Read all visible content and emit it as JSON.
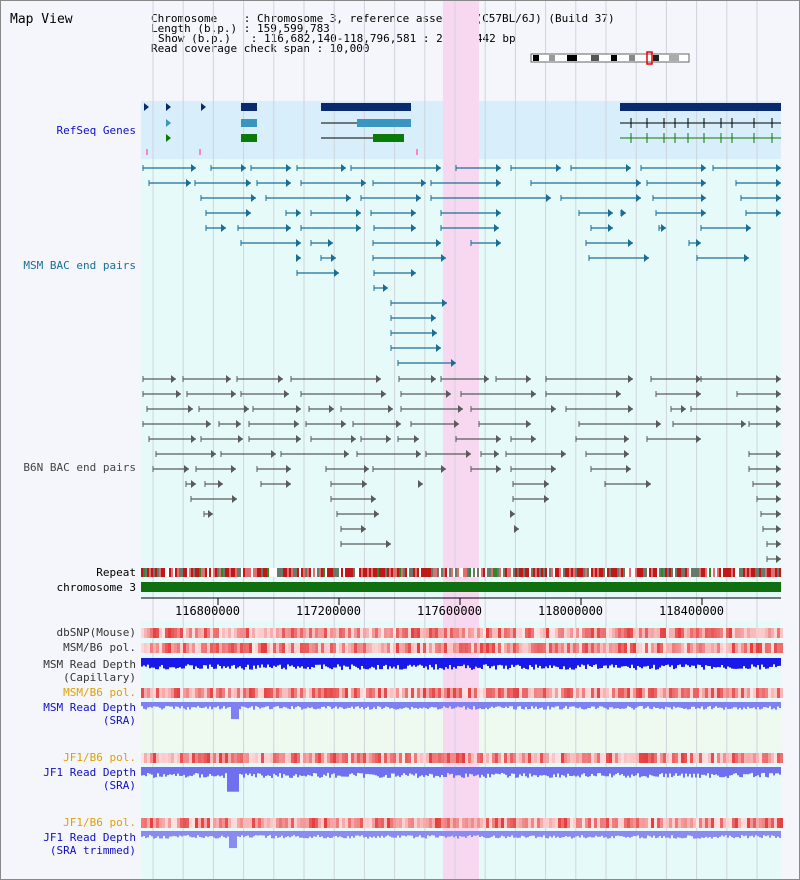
{
  "header": {
    "title": "Map View",
    "lines": [
      "Chromosome    : Chromosome 3, reference assembly (C57BL/6J) (Build 37)",
      "Length (b.p.) : 159,599,783",
      "Show (b.p.)   : 116,682,140-118,796,581 : 2,114,442 bp",
      "Read coverage check span : 10,000"
    ]
  },
  "tracks": {
    "refseq": "RefSeq Genes",
    "msm_bac": "MSM BAC end pairs",
    "b6n_bac": "B6N BAC end pairs",
    "repeat": "Repeat",
    "chromosome": "chromosome 3",
    "dbsnp": "dbSNP(Mouse)",
    "msm_b6_pol": "MSM/B6 pol.",
    "msm_read_depth_cap": "MSM Read Depth",
    "msm_read_depth_cap_sub": "(Capillary)",
    "msm_b6_pol_sra": "MSM/B6 pol.",
    "msm_read_depth_sra": "MSM Read Depth",
    "msm_read_depth_sra_sub": "(SRA)",
    "jf1_b6_pol": "JF1/B6 pol.",
    "jf1_read_depth": "JF1 Read Depth",
    "jf1_read_depth_sub": "(SRA)",
    "jf1_b6_pol_trim": "JF1/B6 pol.",
    "jf1_read_depth_trim": "JF1 Read Depth",
    "jf1_read_depth_trim_sub": "(SRA trimmed)"
  },
  "axis": {
    "ticks": [
      "116800000",
      "117200000",
      "117600000",
      "118000000",
      "118400000"
    ]
  },
  "colors": {
    "refseq_bg": "#d8eefa",
    "track_bg": "#e6fafa",
    "highlight": "#f8d8f0",
    "msm_blue": "#1a6e96",
    "b6n_gray": "#5a5a5a",
    "gene_navy": "#0a2a6e",
    "gene_teal": "#3a96c0",
    "gene_green": "#0a7a0a",
    "refseq_label": "#1010c0",
    "orange": "#e0a000",
    "chrom_green": "#107010"
  }
}
